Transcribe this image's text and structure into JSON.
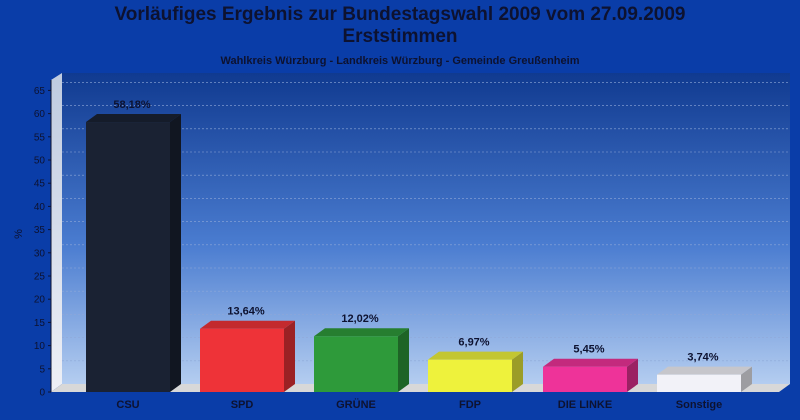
{
  "chart_data": {
    "type": "bar",
    "title": "Vorläufiges Ergebnis zur Bundestagswahl 2009 vom 27.09.2009",
    "title_line2": "Erststimmen",
    "subtitle": "Wahlkreis Würzburg - Landkreis Würzburg - Gemeinde Greußenheim",
    "xlabel": "",
    "ylabel": "%",
    "ylim": [
      0,
      67
    ],
    "yticks": [
      0,
      5,
      10,
      15,
      20,
      25,
      30,
      35,
      40,
      45,
      50,
      55,
      60,
      65
    ],
    "grid": true,
    "categories": [
      "CSU",
      "SPD",
      "GRÜNE",
      "FDP",
      "DIE LINKE",
      "Sonstige"
    ],
    "values": [
      58.18,
      13.64,
      12.02,
      6.97,
      5.45,
      3.74
    ],
    "value_labels": [
      "58,18%",
      "13,64%",
      "12,02%",
      "6,97%",
      "5,45%",
      "3,74%"
    ],
    "colors": [
      "#1a2233",
      "#ee3338",
      "#2e9a3a",
      "#eef23c",
      "#ee3399",
      "#f2f2f8"
    ],
    "background_color": "#0a3da8"
  }
}
